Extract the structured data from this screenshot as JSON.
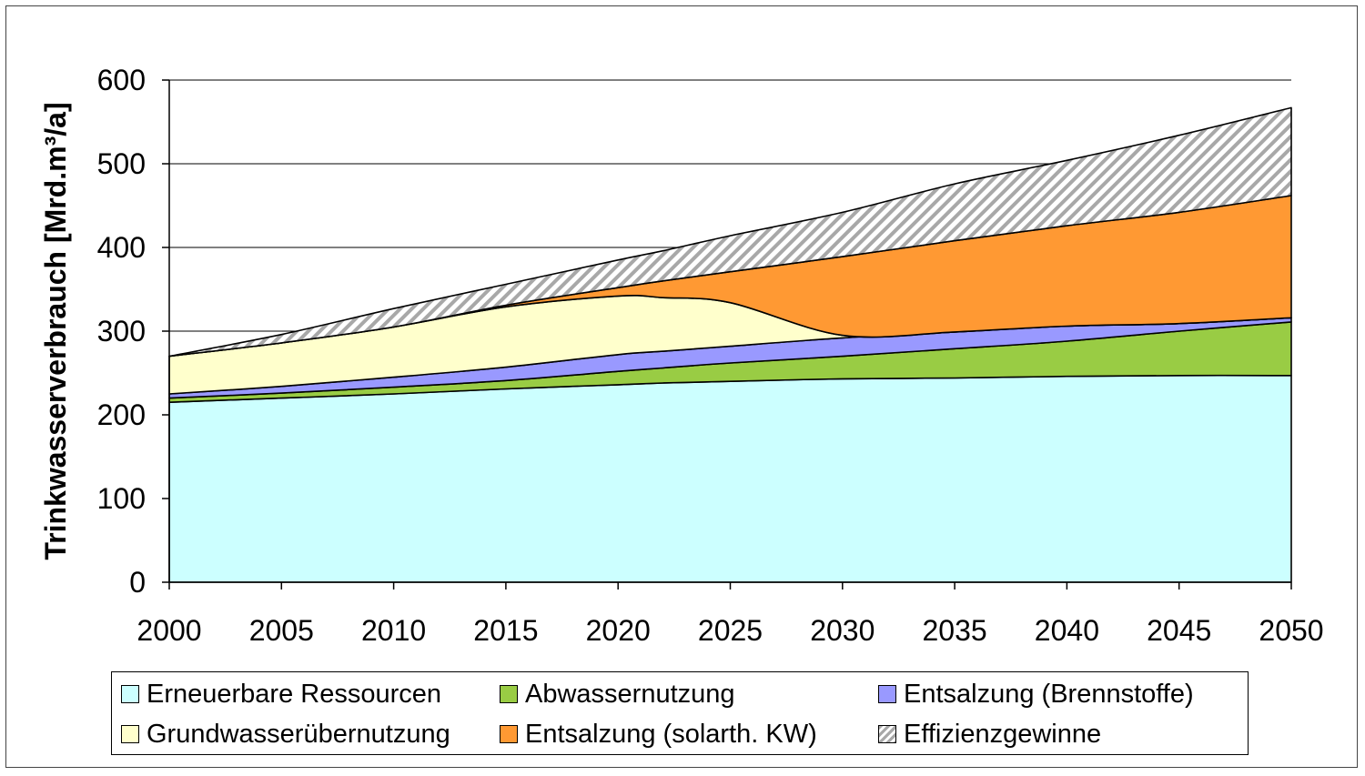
{
  "chart_data": {
    "type": "area",
    "stacked": true,
    "title": "",
    "xlabel": "",
    "ylabel": "Trinkwasserverbrauch [Mrd.m³/a]",
    "ylim": [
      0,
      600
    ],
    "xlim": [
      2000,
      2050
    ],
    "grid": "horizontal",
    "legend_position": "bottom",
    "x": [
      2000,
      2005,
      2010,
      2015,
      2020,
      2022,
      2025,
      2030,
      2035,
      2040,
      2045,
      2050
    ],
    "x_ticks": [
      "2000",
      "2005",
      "2010",
      "2015",
      "2020",
      "2025",
      "2030",
      "2035",
      "2040",
      "2045",
      "2050"
    ],
    "y_ticks": [
      "0",
      "100",
      "200",
      "300",
      "400",
      "500",
      "600"
    ],
    "series": [
      {
        "name": "Erneuerbare Ressourcen",
        "color": "#ccffff",
        "pattern": "",
        "values": [
          215,
          220,
          225,
          231,
          236,
          238,
          240,
          243,
          244,
          246,
          247,
          247
        ]
      },
      {
        "name": "Abwassernutzung",
        "color": "#99cc44",
        "pattern": "",
        "values": [
          5,
          6,
          8,
          10,
          16,
          18,
          22,
          27,
          35,
          42,
          53,
          64
        ]
      },
      {
        "name": "Entsalzung (Brennstoffe)",
        "color": "#9999ff",
        "pattern": "",
        "values": [
          5,
          8,
          12,
          16,
          20,
          20,
          20,
          22,
          20,
          18,
          9,
          5
        ]
      },
      {
        "name": "Grundwasserübernutzung",
        "color": "#ffffcc",
        "pattern": "",
        "values": [
          45,
          52,
          60,
          72,
          70,
          64,
          52,
          3,
          0,
          0,
          0,
          0
        ]
      },
      {
        "name": "Entsalzung (solarth. KW)",
        "color": "#ff9933",
        "pattern": "",
        "values": [
          0,
          0,
          0,
          2,
          10,
          20,
          37,
          94,
          109,
          120,
          133,
          146
        ]
      },
      {
        "name": "Effizienzgewinne",
        "color": "#ffffff",
        "pattern": "hatch",
        "values": [
          0,
          10,
          22,
          25,
          33,
          36,
          43,
          53,
          68,
          78,
          92,
          105
        ]
      }
    ]
  },
  "legend": {
    "items": [
      {
        "label": "Erneuerbare Ressourcen"
      },
      {
        "label": "Abwassernutzung"
      },
      {
        "label": "Entsalzung (Brennstoffe)"
      },
      {
        "label": "Grundwasserübernutzung"
      },
      {
        "label": "Entsalzung (solarth. KW)"
      },
      {
        "label": "Effizienzgewinne"
      }
    ]
  }
}
